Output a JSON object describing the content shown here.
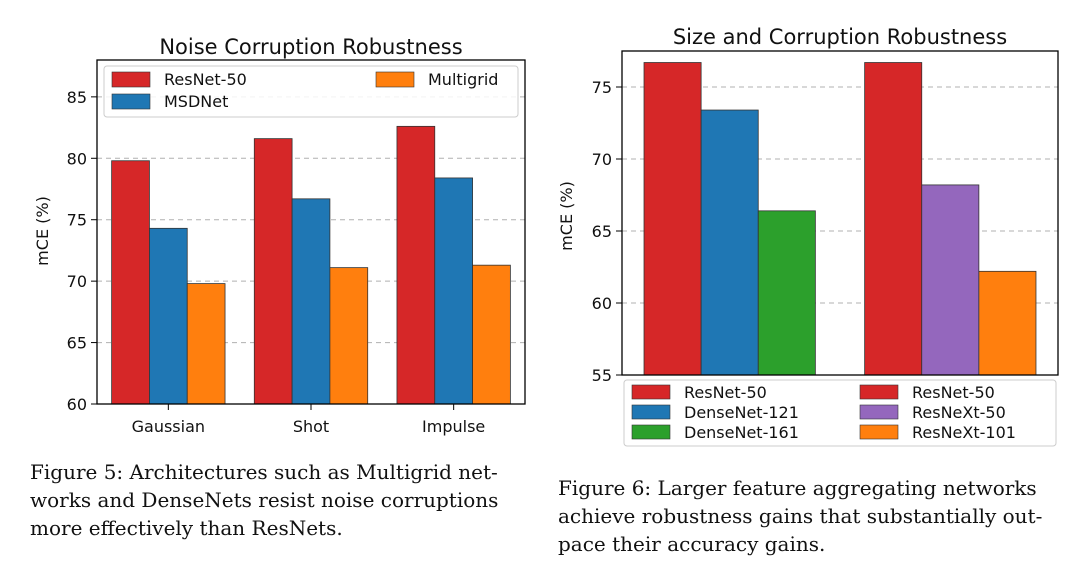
{
  "chart_data": [
    {
      "type": "bar",
      "title": "Noise Corruption Robustness",
      "ylabel": "mCE (%)",
      "xlabel": "",
      "ylim": [
        60,
        88
      ],
      "yticks": [
        60,
        65,
        70,
        75,
        80,
        85
      ],
      "categories": [
        "Gaussian",
        "Shot",
        "Impulse"
      ],
      "grid": true,
      "legend_position": "top",
      "series": [
        {
          "name": "ResNet-50",
          "color": "#d62728",
          "values": [
            79.8,
            81.6,
            82.6
          ]
        },
        {
          "name": "MSDNet",
          "color": "#1f77b4",
          "values": [
            74.3,
            76.7,
            78.4
          ]
        },
        {
          "name": "Multigrid",
          "color": "#ff7f0e",
          "values": [
            69.8,
            71.1,
            71.3
          ]
        }
      ]
    },
    {
      "type": "bar",
      "title": "Size and Corruption Robustness",
      "ylabel": "mCE (%)",
      "xlabel": "",
      "ylim": [
        55,
        77.5
      ],
      "yticks": [
        55,
        60,
        65,
        70,
        75
      ],
      "grid": true,
      "legend_position": "bottom",
      "groups": [
        {
          "bars": [
            {
              "name": "ResNet-50",
              "color": "#d62728",
              "value": 76.7
            },
            {
              "name": "DenseNet-121",
              "color": "#1f77b4",
              "value": 73.4
            },
            {
              "name": "DenseNet-161",
              "color": "#2ca02c",
              "value": 66.4
            }
          ]
        },
        {
          "bars": [
            {
              "name": "ResNet-50",
              "color": "#d62728",
              "value": 76.7
            },
            {
              "name": "ResNeXt-50",
              "color": "#9467bd",
              "value": 68.2
            },
            {
              "name": "ResNeXt-101",
              "color": "#ff7f0e",
              "value": 62.2
            }
          ]
        }
      ]
    }
  ],
  "captions": {
    "fig5": [
      "Figure 5: Architectures such as Multigrid net-",
      "works and DenseNets resist noise corruptions",
      "more effectively than ResNets."
    ],
    "fig6": [
      "Figure 6: Larger feature aggregating networks",
      "achieve robustness gains that substantially out-",
      "pace their accuracy gains."
    ]
  }
}
